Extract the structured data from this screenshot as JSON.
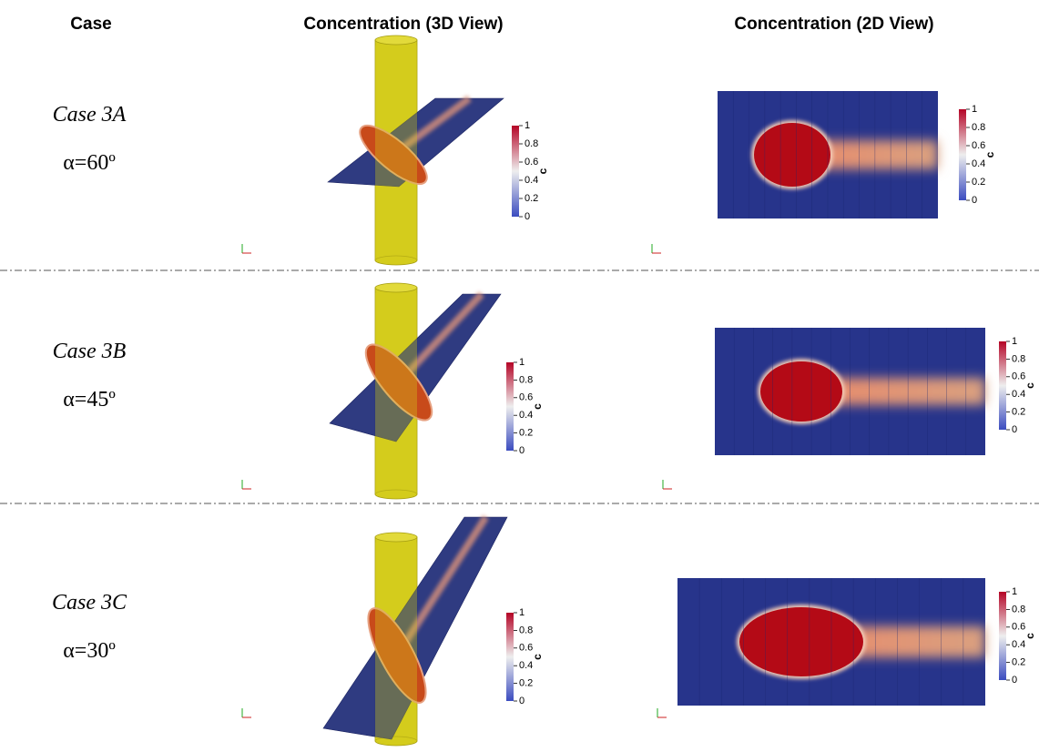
{
  "header": {
    "case": "Case",
    "view3d": "Concentration (3D View)",
    "view2d": "Concentration (2D View)"
  },
  "rows": [
    {
      "case": "Case 3A",
      "angle": "α=60º"
    },
    {
      "case": "Case 3B",
      "angle": "α=45º"
    },
    {
      "case": "Case 3C",
      "angle": "α=30º"
    }
  ],
  "colorbar": {
    "label": "c",
    "ticks": [
      0,
      0.2,
      0.4,
      0.6,
      0.8,
      1
    ]
  }
}
